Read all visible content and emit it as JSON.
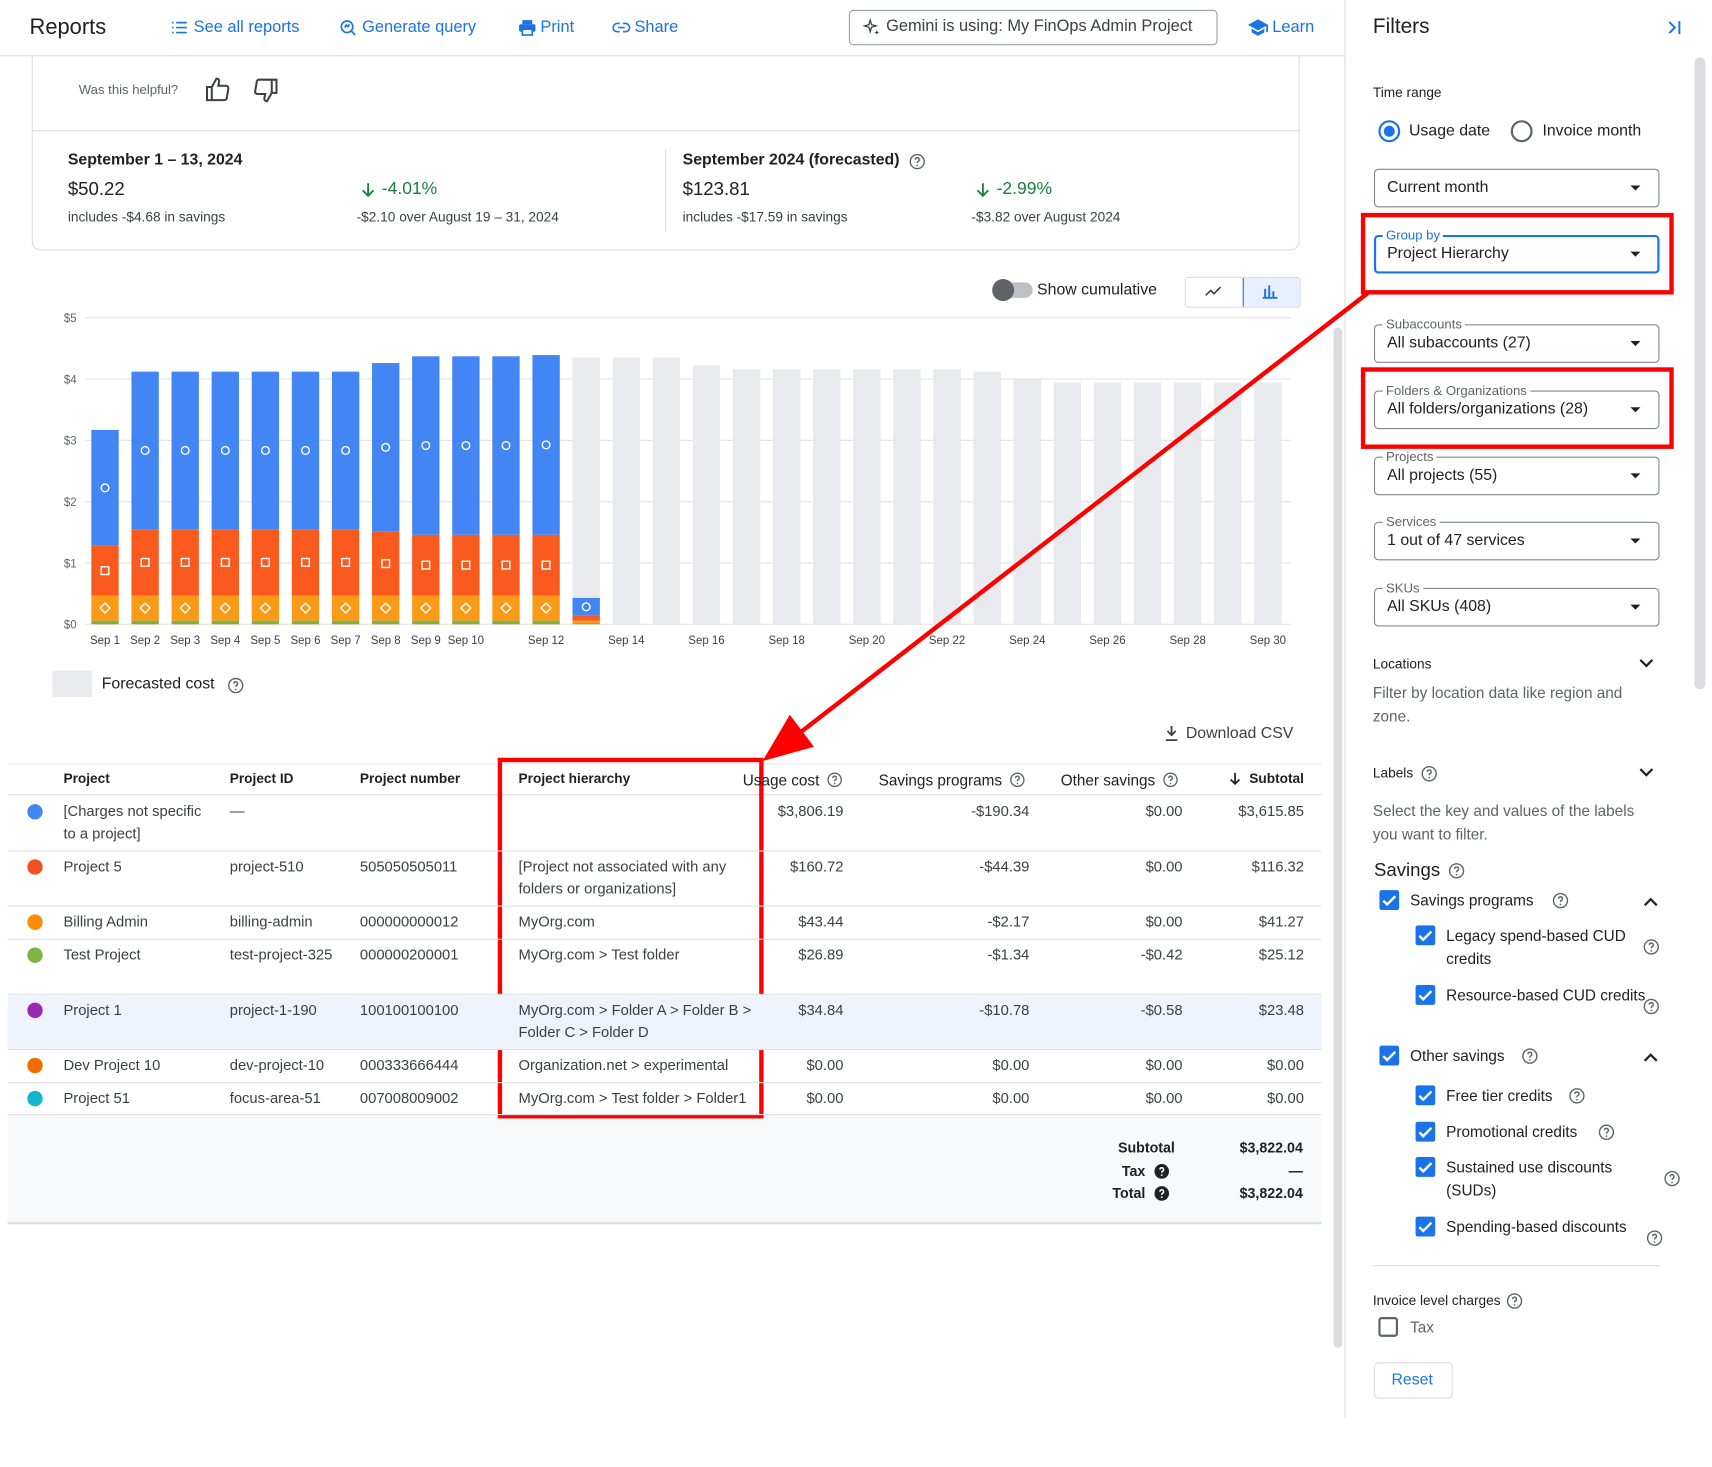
{
  "header": {
    "title": "Reports",
    "links": [
      "See all reports",
      "Generate query",
      "Print",
      "Share"
    ],
    "gemini": "Gemini is using: My FinOps Admin Project",
    "learn": "Learn"
  },
  "feedback": "Was this helpful?",
  "summary": [
    {
      "period": "September 1 – 13, 2024",
      "amount": "$50.22",
      "savings": "includes -$4.68 in savings",
      "change": "-4.01%",
      "change_note": "-$2.10 over August 19 – 31, 2024"
    },
    {
      "period": "September 2024 (forecasted)",
      "amount": "$123.81",
      "savings": "includes -$17.59 in savings",
      "change": "-2.99%",
      "change_note": "-$3.82 over August 2024"
    }
  ],
  "chart_controls": {
    "toggle": "Show cumulative",
    "cumulative": false,
    "view": "bar"
  },
  "chart_data": {
    "type": "bar",
    "stacked": true,
    "grid": true,
    "categories": [
      "Sep 1",
      "Sep 2",
      "Sep 3",
      "Sep 4",
      "Sep 5",
      "Sep 6",
      "Sep 7",
      "Sep 8",
      "Sep 9",
      "Sep 10",
      null,
      "Sep 12",
      null,
      "Sep 14",
      null,
      "Sep 16",
      null,
      "Sep 18",
      null,
      "Sep 20",
      null,
      "Sep 22",
      null,
      "Sep 24",
      null,
      "Sep 26",
      null,
      "Sep 28",
      null,
      "Sep 30"
    ],
    "series": [
      {
        "color": "#7cb342",
        "values": [
          0.06,
          0.06,
          0.06,
          0.06,
          0.06,
          0.06,
          0.06,
          0.06,
          0.06,
          0.06,
          0.06,
          0.06,
          0.02,
          null,
          null,
          null,
          null,
          null,
          null,
          null,
          null,
          null,
          null,
          null,
          null,
          null,
          null,
          null,
          null,
          null
        ]
      },
      {
        "color": "#fb9a16",
        "marker": "diamond",
        "values": [
          0.41,
          0.41,
          0.41,
          0.41,
          0.41,
          0.41,
          0.41,
          0.41,
          0.41,
          0.41,
          0.41,
          0.41,
          0.04,
          null,
          null,
          null,
          null,
          null,
          null,
          null,
          null,
          null,
          null,
          null,
          null,
          null,
          null,
          null,
          null,
          null
        ]
      },
      {
        "color": "#fa5a1e",
        "marker": "square",
        "values": [
          0.81,
          1.08,
          1.08,
          1.08,
          1.08,
          1.08,
          1.08,
          1.04,
          0.99,
          0.99,
          0.99,
          0.99,
          0.08,
          null,
          null,
          null,
          null,
          null,
          null,
          null,
          null,
          null,
          null,
          null,
          null,
          null,
          null,
          null,
          null,
          null
        ]
      },
      {
        "color": "#4285f4",
        "marker": "circle",
        "values": [
          1.89,
          2.57,
          2.57,
          2.57,
          2.57,
          2.57,
          2.57,
          2.75,
          2.91,
          2.91,
          2.91,
          2.93,
          0.29,
          null,
          null,
          null,
          null,
          null,
          null,
          null,
          null,
          null,
          null,
          null,
          null,
          null,
          null,
          null,
          null,
          null
        ]
      }
    ],
    "forecast": {
      "name": "Forecasted cost",
      "color": "#e8eaed",
      "values": [
        null,
        null,
        null,
        null,
        null,
        null,
        null,
        null,
        null,
        null,
        null,
        null,
        4.35,
        4.35,
        4.35,
        4.22,
        4.16,
        4.16,
        4.16,
        4.16,
        4.16,
        4.16,
        4.12,
        3.99,
        3.94,
        3.94,
        3.94,
        3.94,
        3.94,
        3.94
      ]
    },
    "ylim": [
      0,
      5
    ],
    "yticks": [
      {
        "value": 0,
        "label": "$0"
      },
      {
        "value": 1,
        "label": "$1"
      },
      {
        "value": 2,
        "label": "$2"
      },
      {
        "value": 3,
        "label": "$3"
      },
      {
        "value": 4,
        "label": "$4"
      },
      {
        "value": 5,
        "label": "$5"
      }
    ]
  },
  "download": "Download CSV",
  "table": {
    "columns": [
      "Project",
      "Project ID",
      "Project number",
      "Project hierarchy",
      "Usage cost",
      "Savings programs",
      "Other savings",
      "Subtotal"
    ],
    "sort_column": 7,
    "selected_row": 4,
    "rows": [
      {
        "color": "#4285f4",
        "cells": [
          "[Charges not specific to a project]",
          "—",
          null,
          null,
          "$3,806.19",
          "-$190.34",
          "$0.00",
          "$3,615.85"
        ]
      },
      {
        "color": "#f4511e",
        "cells": [
          "Project 5",
          "project-510",
          "505050505011",
          "[Project not associated with any folders or organizations]",
          "$160.72",
          "-$44.39",
          "$0.00",
          "$116.32"
        ]
      },
      {
        "color": "#fb8c00",
        "cells": [
          "Billing Admin",
          "billing-admin",
          "000000000012",
          "MyOrg.com",
          "$43.44",
          "-$2.17",
          "$0.00",
          "$41.27"
        ]
      },
      {
        "color": "#7cb342",
        "cells": [
          "Test Project",
          "test-project-325",
          "000000200001",
          "MyOrg.com > Test folder",
          "$26.89",
          "-$1.34",
          "-$0.42",
          "$25.12"
        ]
      },
      {
        "color": "#9c27b0",
        "cells": [
          "Project 1",
          "project-1-190",
          "100100100100",
          "MyOrg.com > Folder A > Folder B > Folder C > Folder D",
          "$34.84",
          "-$10.78",
          "-$0.58",
          "$23.48"
        ]
      },
      {
        "color": "#ef6c00",
        "cells": [
          "Dev Project 10",
          "dev-project-10",
          "000333666444",
          "Organization.net > experimental",
          "$0.00",
          "$0.00",
          "$0.00",
          "$0.00"
        ]
      },
      {
        "color": "#12b5cb",
        "cells": [
          "Project 51",
          "focus-area-51",
          "007008009002",
          "MyOrg.com > Test folder > Folder1",
          "$0.00",
          "$0.00",
          "$0.00",
          "$0.00"
        ]
      }
    ],
    "footer": [
      {
        "label": "Subtotal",
        "value": "$3,822.04"
      },
      {
        "label": "Tax",
        "value": "—"
      },
      {
        "label": "Total",
        "value": "$3,822.04"
      }
    ]
  },
  "filters": {
    "title": "Filters",
    "time_range": {
      "label": "Time range",
      "options": [
        "Usage date",
        "Invoice month"
      ],
      "selected": 0
    },
    "dropdowns": [
      {
        "value": "Current month"
      },
      {
        "label": "Group by",
        "value": "Project Hierarchy",
        "focused": true
      },
      {
        "label": "Subaccounts",
        "value": "All subaccounts (27)"
      },
      {
        "label": "Folders & Organizations",
        "value": "All folders/organizations (28)"
      },
      {
        "label": "Projects",
        "value": "All projects (55)"
      },
      {
        "label": "Services",
        "value": "1 out of 47 services"
      },
      {
        "label": "SKUs",
        "value": "All SKUs (408)"
      }
    ],
    "locations": {
      "label": "Locations",
      "description": "Filter by location data like region and zone."
    },
    "labels": {
      "label": "Labels",
      "description": "Select the key and values of the labels you want to filter."
    },
    "savings": {
      "title": "Savings",
      "groups": [
        {
          "label": "Savings programs",
          "checked": true,
          "items": [
            {
              "label": "Legacy spend-based CUD credits",
              "checked": true
            },
            {
              "label": "Resource-based CUD credits",
              "checked": true
            }
          ]
        },
        {
          "label": "Other savings",
          "checked": true,
          "items": [
            {
              "label": "Free tier credits",
              "checked": true
            },
            {
              "label": "Promotional credits",
              "checked": true
            },
            {
              "label": "Sustained use discounts (SUDs)",
              "checked": true
            },
            {
              "label": "Spending-based discounts",
              "checked": true
            }
          ]
        }
      ]
    },
    "invoice": {
      "label": "Invoice level charges",
      "items": [
        {
          "label": "Tax",
          "checked": false
        }
      ]
    },
    "reset": "Reset"
  }
}
